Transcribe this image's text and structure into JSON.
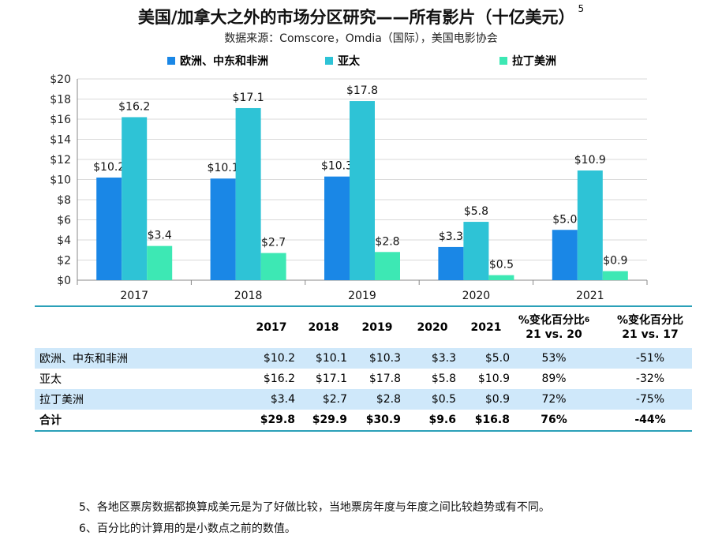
{
  "title": "美国/加拿大之外的市场分区研究——所有影片（十亿美元）",
  "title_note": "5",
  "subtitle": "数据来源：Comscore，Omdia（国际），美国电影协会",
  "colors": {
    "emea": "#1a87e6",
    "apac": "#2ec3d6",
    "latam": "#3de8b4",
    "table_accent": "#2aa0b8",
    "table_alt": "#cfe8fa"
  },
  "chart_data": {
    "type": "bar",
    "categories": [
      "2017",
      "2018",
      "2019",
      "2020",
      "2021"
    ],
    "series": [
      {
        "name": "欧洲、中东和非洲",
        "values": [
          10.2,
          10.1,
          10.3,
          3.3,
          5.0
        ],
        "labels": [
          "$10.2",
          "$10.1",
          "$10.3",
          "$3.3",
          "$5.0"
        ]
      },
      {
        "name": "亚太",
        "values": [
          16.2,
          17.1,
          17.8,
          5.8,
          10.9
        ],
        "labels": [
          "$16.2",
          "$17.1",
          "$17.8",
          "$5.8",
          "$10.9"
        ]
      },
      {
        "name": "拉丁美洲",
        "values": [
          3.4,
          2.7,
          2.8,
          0.5,
          0.9
        ],
        "labels": [
          "$3.4",
          "$2.7",
          "$2.8",
          "$0.5",
          "$0.9"
        ]
      }
    ],
    "yticks": [
      "$0",
      "$2",
      "$4",
      "$6",
      "$8",
      "$10",
      "$12",
      "$14",
      "$16",
      "$18",
      "$20"
    ],
    "ylim": [
      0,
      20
    ],
    "grid": true,
    "legend_position": "top"
  },
  "table": {
    "columns": [
      "2017",
      "2018",
      "2019",
      "2020",
      "2021"
    ],
    "change_col_1": {
      "line1": "%变化百分比",
      "note": "6",
      "line2": "21 vs. 20"
    },
    "change_col_2": {
      "line1": "%变化百分比",
      "line2": "21 vs. 17"
    },
    "rows": [
      {
        "label": "欧洲、中东和非洲",
        "values": [
          "$10.2",
          "$10.1",
          "$10.3",
          "$3.3",
          "$5.0"
        ],
        "chg1": "53%",
        "chg2": "-51%"
      },
      {
        "label": "亚太",
        "values": [
          "$16.2",
          "$17.1",
          "$17.8",
          "$5.8",
          "$10.9"
        ],
        "chg1": "89%",
        "chg2": "-32%"
      },
      {
        "label": "拉丁美洲",
        "values": [
          "$3.4",
          "$2.7",
          "$2.8",
          "$0.5",
          "$0.9"
        ],
        "chg1": "72%",
        "chg2": "-75%"
      },
      {
        "label": "合计",
        "values": [
          "$29.8",
          "$29.9",
          "$30.9",
          "$9.6",
          "$16.8"
        ],
        "chg1": "76%",
        "chg2": "-44%"
      }
    ]
  },
  "footnotes": [
    "5、各地区票房数据都换算成美元是为了好做比较，当地票房年度与年度之间比较趋势或有不同。",
    "6、百分比的计算用的是小数点之前的数值。"
  ]
}
